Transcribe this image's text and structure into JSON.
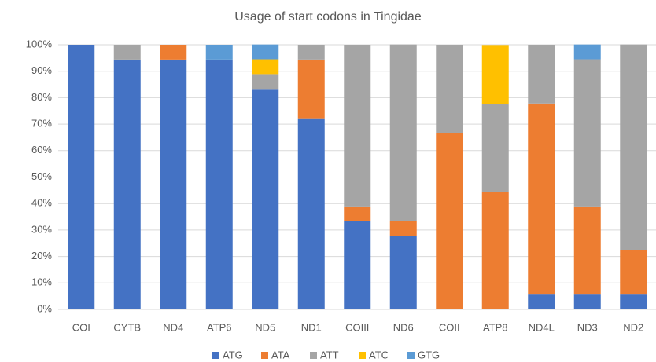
{
  "chart_data": {
    "type": "stacked_bar",
    "title": "Usage of start codons in Tingidae",
    "categories": [
      "COI",
      "CYTB",
      "ND4",
      "ATP6",
      "ND5",
      "ND1",
      "COIII",
      "ND6",
      "COII",
      "ATP8",
      "ND4L",
      "ND3",
      "ND2"
    ],
    "series": [
      {
        "name": "ATG",
        "color": "#4472c4",
        "values": [
          100,
          94.4,
          94.4,
          94.4,
          83.3,
          72.2,
          33.3,
          27.8,
          0,
          0,
          5.6,
          5.6,
          5.6
        ]
      },
      {
        "name": "ATA",
        "color": "#ed7d31",
        "values": [
          0,
          0,
          5.6,
          0,
          0,
          22.2,
          5.6,
          5.6,
          66.7,
          44.4,
          72.2,
          33.3,
          16.7
        ]
      },
      {
        "name": "ATT",
        "color": "#a5a5a5",
        "values": [
          0,
          5.6,
          0,
          0,
          5.6,
          5.6,
          61.1,
          66.7,
          33.3,
          33.3,
          22.2,
          55.6,
          77.8
        ]
      },
      {
        "name": "ATC",
        "color": "#ffc000",
        "values": [
          0,
          0,
          0,
          0,
          5.6,
          0,
          0,
          0,
          0,
          22.2,
          0,
          0,
          0
        ]
      },
      {
        "name": "GTG",
        "color": "#5b9bd5",
        "values": [
          0,
          0,
          0,
          5.6,
          5.6,
          0,
          0,
          0,
          0,
          0,
          0,
          5.6,
          0
        ]
      }
    ],
    "ylim": [
      0,
      100
    ],
    "yticks": [
      {
        "value": 0,
        "label": "0%"
      },
      {
        "value": 10,
        "label": "10%"
      },
      {
        "value": 20,
        "label": "20%"
      },
      {
        "value": 30,
        "label": "30%"
      },
      {
        "value": 40,
        "label": "40%"
      },
      {
        "value": 50,
        "label": "50%"
      },
      {
        "value": 60,
        "label": "60%"
      },
      {
        "value": 70,
        "label": "70%"
      },
      {
        "value": 80,
        "label": "80%"
      },
      {
        "value": 90,
        "label": "90%"
      },
      {
        "value": 100,
        "label": "100%"
      }
    ],
    "grid": true,
    "legend": "bottom"
  }
}
